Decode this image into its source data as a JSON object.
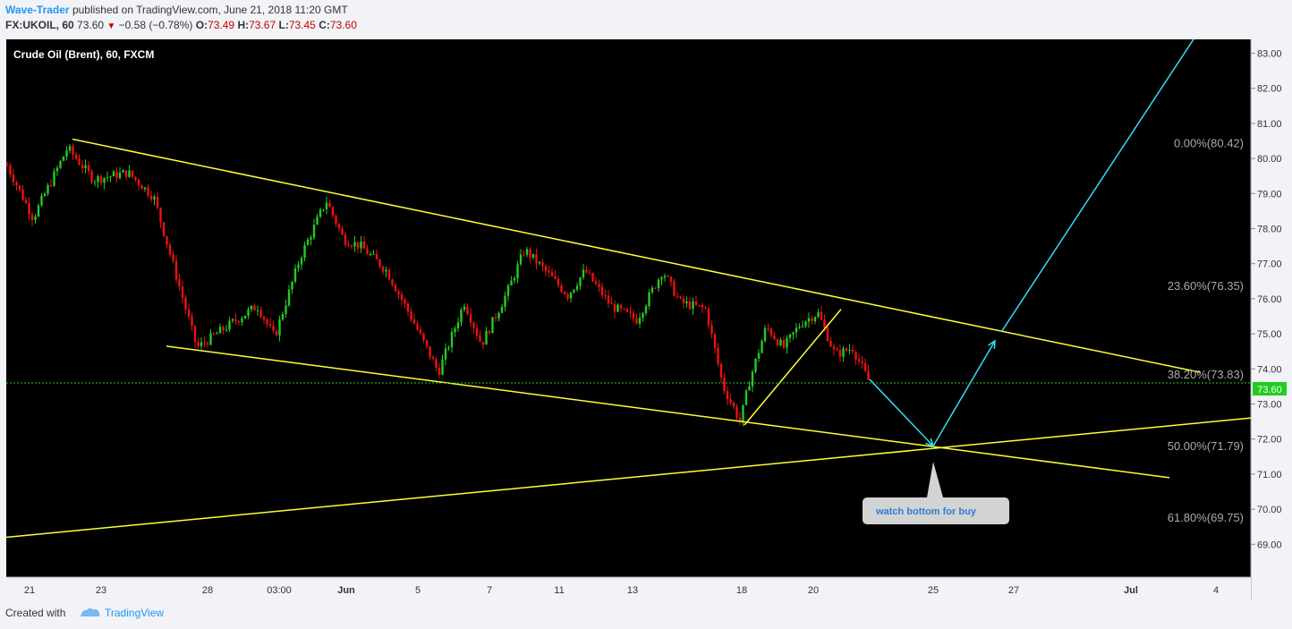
{
  "header": {
    "author": "Wave-Trader",
    "published_text": "published on TradingView.com, June 21, 2018 11:20 GMT",
    "symbol": "FX:UKOIL, 60",
    "last": "73.60",
    "change": "−0.58 (−0.78%)",
    "o_label": "O:",
    "o_value": "73.49",
    "h_label": "H:",
    "h_value": "73.67",
    "l_label": "L:",
    "l_value": "73.45",
    "c_label": "C:",
    "c_value": "73.60"
  },
  "footer": {
    "created_with": "Created with",
    "brand": "TradingView"
  },
  "colors": {
    "background": "#000000",
    "up": "#22cc22",
    "down": "#ee1111",
    "trendline": "#ffff33",
    "projection": "#33ddee",
    "price_line": "#22cc22"
  },
  "chart_data": {
    "type": "candlestick",
    "title": "Crude Oil (Brent), 60, FXCM",
    "ylim": [
      68.5,
      83.4
    ],
    "y_ticks": [
      "69.00",
      "70.00",
      "71.00",
      "72.00",
      "73.00",
      "74.00",
      "75.00",
      "76.00",
      "77.00",
      "78.00",
      "79.00",
      "80.00",
      "81.00",
      "82.00",
      "83.00"
    ],
    "x_ticks": [
      "21",
      "23",
      "28",
      "03:00",
      "Jun",
      "5",
      "7",
      "11",
      "13",
      "18",
      "20",
      "25",
      "27",
      "Jul",
      "4"
    ],
    "current_price": "73.60",
    "price_path": [
      [
        0,
        79.8
      ],
      [
        0.03,
        78.3
      ],
      [
        0.07,
        80.3
      ],
      [
        0.1,
        79.4
      ],
      [
        0.14,
        79.6
      ],
      [
        0.17,
        78.9
      ],
      [
        0.22,
        74.6
      ],
      [
        0.26,
        75.3
      ],
      [
        0.29,
        75.8
      ],
      [
        0.31,
        74.9
      ],
      [
        0.34,
        77.2
      ],
      [
        0.37,
        78.8
      ],
      [
        0.39,
        77.7
      ],
      [
        0.41,
        77.5
      ],
      [
        0.44,
        76.8
      ],
      [
        0.47,
        75.4
      ],
      [
        0.5,
        73.9
      ],
      [
        0.53,
        75.9
      ],
      [
        0.55,
        74.7
      ],
      [
        0.58,
        76.2
      ],
      [
        0.6,
        77.4
      ],
      [
        0.62,
        76.9
      ],
      [
        0.65,
        76.1
      ],
      [
        0.67,
        76.8
      ],
      [
        0.7,
        75.8
      ],
      [
        0.73,
        75.4
      ],
      [
        0.76,
        76.8
      ],
      [
        0.78,
        75.9
      ],
      [
        0.81,
        75.7
      ],
      [
        0.83,
        73.5
      ],
      [
        0.85,
        72.5
      ],
      [
        0.86,
        73.6
      ],
      [
        0.88,
        75.2
      ],
      [
        0.9,
        74.6
      ],
      [
        0.92,
        75.3
      ],
      [
        0.94,
        75.6
      ],
      [
        0.96,
        74.4
      ],
      [
        0.98,
        74.6
      ],
      [
        1.0,
        73.6
      ]
    ],
    "trendlines": [
      {
        "name": "upper",
        "from": {
          "x": "22",
          "y": 80.55
        },
        "to": {
          "x": "Jul 3",
          "y": 73.9
        }
      },
      {
        "name": "lower",
        "from": {
          "x": "25",
          "y": 74.65
        },
        "to": {
          "x": "Jul 3",
          "y": 70.9
        }
      },
      {
        "name": "support",
        "from": {
          "x": "20",
          "y": 69.2
        },
        "to": {
          "x": "Jul 5",
          "y": 72.6
        }
      },
      {
        "name": "swing",
        "from": {
          "x": "18",
          "y": 72.4
        },
        "to": {
          "x": "20",
          "y": 75.7
        }
      }
    ],
    "fib_levels": [
      {
        "label": "0.00%(80.42)",
        "value": 80.42
      },
      {
        "label": "23.60%(76.35)",
        "value": 76.35
      },
      {
        "label": "38.20%(73.83)",
        "value": 73.83
      },
      {
        "label": "50.00%(71.79)",
        "value": 71.79
      },
      {
        "label": "61.80%(69.75)",
        "value": 69.75
      }
    ],
    "projection": [
      {
        "x": "22",
        "y": 73.7
      },
      {
        "x": "25",
        "y": 71.8
      },
      {
        "x": "26",
        "y": 74.8
      },
      {
        "x": "26",
        "y": 75.05
      },
      {
        "x": "Jul 3",
        "y": 83.4
      }
    ],
    "annotation": "watch bottom for buy"
  }
}
